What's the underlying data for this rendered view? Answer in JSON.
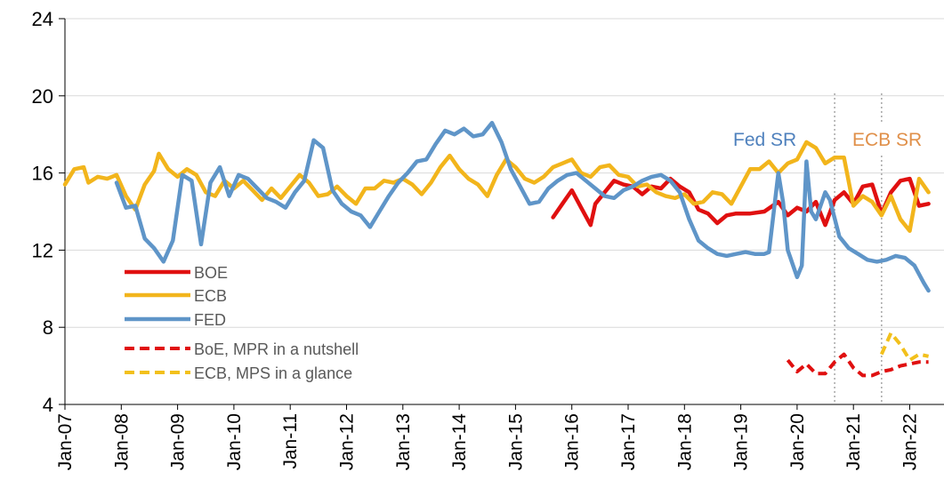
{
  "chart_data": {
    "type": "line",
    "title": "",
    "xlabel": "",
    "ylabel": "",
    "ylim": [
      4,
      24
    ],
    "y_ticks": [
      "4",
      "8",
      "12",
      "16",
      "20",
      "24"
    ],
    "grid": "horizontal",
    "legend_position": "left",
    "x_tick_labels": [
      "Jan-07",
      "Jan-08",
      "Jan-09",
      "Jan-10",
      "Jan-11",
      "Jan-12",
      "Jan-13",
      "Jan-14",
      "Jan-15",
      "Jan-16",
      "Jan-17",
      "Jan-18",
      "Jan-19",
      "Jan-20",
      "Jan-21",
      "Jan-22"
    ],
    "annotations": [
      {
        "label": "Fed SR",
        "date": "2020-09",
        "color": "#4f81bd"
      },
      {
        "label": "ECB SR",
        "date": "2021-07",
        "color": "#e0904a"
      }
    ],
    "series": [
      {
        "name": "BOE",
        "color": "#e01010",
        "dash": false,
        "points": [
          [
            "2015-09",
            13.7
          ],
          [
            "2015-11",
            14.4
          ],
          [
            "2016-01",
            15.1
          ],
          [
            "2016-03",
            14.2
          ],
          [
            "2016-05",
            13.3
          ],
          [
            "2016-06",
            14.4
          ],
          [
            "2016-08",
            15.0
          ],
          [
            "2016-10",
            15.6
          ],
          [
            "2016-12",
            15.4
          ],
          [
            "2017-02",
            15.3
          ],
          [
            "2017-04",
            14.9
          ],
          [
            "2017-06",
            15.3
          ],
          [
            "2017-08",
            15.2
          ],
          [
            "2017-10",
            15.7
          ],
          [
            "2017-12",
            15.3
          ],
          [
            "2018-02",
            15.0
          ],
          [
            "2018-04",
            14.1
          ],
          [
            "2018-06",
            13.9
          ],
          [
            "2018-08",
            13.4
          ],
          [
            "2018-10",
            13.8
          ],
          [
            "2018-12",
            13.9
          ],
          [
            "2019-03",
            13.9
          ],
          [
            "2019-06",
            14.0
          ],
          [
            "2019-09",
            14.5
          ],
          [
            "2019-11",
            13.8
          ],
          [
            "2020-01",
            14.2
          ],
          [
            "2020-03",
            14.0
          ],
          [
            "2020-05",
            14.5
          ],
          [
            "2020-07",
            13.3
          ],
          [
            "2020-09",
            14.6
          ],
          [
            "2020-11",
            15.0
          ],
          [
            "2021-01",
            14.4
          ],
          [
            "2021-03",
            15.3
          ],
          [
            "2021-05",
            15.4
          ],
          [
            "2021-07",
            13.9
          ],
          [
            "2021-09",
            15.0
          ],
          [
            "2021-11",
            15.6
          ],
          [
            "2022-01",
            15.7
          ],
          [
            "2022-03",
            14.3
          ],
          [
            "2022-05",
            14.4
          ]
        ]
      },
      {
        "name": "ECB",
        "color": "#f2b51c",
        "dash": false,
        "points": [
          [
            "2007-01",
            15.4
          ],
          [
            "2007-03",
            16.2
          ],
          [
            "2007-05",
            16.3
          ],
          [
            "2007-06",
            15.5
          ],
          [
            "2007-08",
            15.8
          ],
          [
            "2007-10",
            15.7
          ],
          [
            "2007-12",
            15.9
          ],
          [
            "2008-02",
            14.8
          ],
          [
            "2008-04",
            14.1
          ],
          [
            "2008-06",
            15.4
          ],
          [
            "2008-08",
            16.1
          ],
          [
            "2008-09",
            17.0
          ],
          [
            "2008-11",
            16.2
          ],
          [
            "2009-01",
            15.8
          ],
          [
            "2009-03",
            16.2
          ],
          [
            "2009-05",
            15.9
          ],
          [
            "2009-07",
            15.0
          ],
          [
            "2009-09",
            14.8
          ],
          [
            "2009-11",
            15.6
          ],
          [
            "2010-01",
            15.2
          ],
          [
            "2010-03",
            15.6
          ],
          [
            "2010-05",
            15.1
          ],
          [
            "2010-07",
            14.6
          ],
          [
            "2010-09",
            15.2
          ],
          [
            "2010-11",
            14.7
          ],
          [
            "2011-01",
            15.3
          ],
          [
            "2011-03",
            15.9
          ],
          [
            "2011-05",
            15.5
          ],
          [
            "2011-07",
            14.8
          ],
          [
            "2011-09",
            14.9
          ],
          [
            "2011-11",
            15.3
          ],
          [
            "2012-01",
            14.8
          ],
          [
            "2012-03",
            14.4
          ],
          [
            "2012-05",
            15.2
          ],
          [
            "2012-07",
            15.2
          ],
          [
            "2012-09",
            15.6
          ],
          [
            "2012-11",
            15.5
          ],
          [
            "2013-01",
            15.7
          ],
          [
            "2013-03",
            15.4
          ],
          [
            "2013-05",
            14.9
          ],
          [
            "2013-07",
            15.5
          ],
          [
            "2013-09",
            16.3
          ],
          [
            "2013-11",
            16.9
          ],
          [
            "2014-01",
            16.2
          ],
          [
            "2014-03",
            15.7
          ],
          [
            "2014-05",
            15.4
          ],
          [
            "2014-07",
            14.8
          ],
          [
            "2014-09",
            15.9
          ],
          [
            "2014-11",
            16.7
          ],
          [
            "2015-01",
            16.3
          ],
          [
            "2015-03",
            15.7
          ],
          [
            "2015-05",
            15.5
          ],
          [
            "2015-07",
            15.8
          ],
          [
            "2015-09",
            16.3
          ],
          [
            "2015-11",
            16.5
          ],
          [
            "2016-01",
            16.7
          ],
          [
            "2016-03",
            16.0
          ],
          [
            "2016-05",
            15.8
          ],
          [
            "2016-07",
            16.3
          ],
          [
            "2016-09",
            16.4
          ],
          [
            "2016-11",
            15.9
          ],
          [
            "2017-01",
            15.8
          ],
          [
            "2017-03",
            15.3
          ],
          [
            "2017-05",
            15.4
          ],
          [
            "2017-07",
            15.0
          ],
          [
            "2017-09",
            14.8
          ],
          [
            "2017-11",
            14.7
          ],
          [
            "2018-01",
            14.9
          ],
          [
            "2018-03",
            14.4
          ],
          [
            "2018-05",
            14.5
          ],
          [
            "2018-07",
            15.0
          ],
          [
            "2018-09",
            14.9
          ],
          [
            "2018-11",
            14.4
          ],
          [
            "2019-01",
            15.3
          ],
          [
            "2019-03",
            16.2
          ],
          [
            "2019-05",
            16.2
          ],
          [
            "2019-07",
            16.6
          ],
          [
            "2019-09",
            16.0
          ],
          [
            "2019-11",
            16.5
          ],
          [
            "2020-01",
            16.7
          ],
          [
            "2020-03",
            17.6
          ],
          [
            "2020-05",
            17.3
          ],
          [
            "2020-07",
            16.5
          ],
          [
            "2020-09",
            16.8
          ],
          [
            "2020-11",
            16.8
          ],
          [
            "2021-01",
            14.3
          ],
          [
            "2021-03",
            14.8
          ],
          [
            "2021-05",
            14.5
          ],
          [
            "2021-07",
            13.8
          ],
          [
            "2021-09",
            14.8
          ],
          [
            "2021-11",
            13.6
          ],
          [
            "2022-01",
            13.0
          ],
          [
            "2022-03",
            15.7
          ],
          [
            "2022-05",
            15.0
          ]
        ]
      },
      {
        "name": "FED",
        "color": "#5f95c8",
        "dash": false,
        "points": [
          [
            "2007-12",
            15.5
          ],
          [
            "2008-02",
            14.2
          ],
          [
            "2008-04",
            14.3
          ],
          [
            "2008-06",
            12.6
          ],
          [
            "2008-08",
            12.1
          ],
          [
            "2008-10",
            11.4
          ],
          [
            "2008-12",
            12.5
          ],
          [
            "2009-02",
            15.9
          ],
          [
            "2009-04",
            15.6
          ],
          [
            "2009-06",
            12.3
          ],
          [
            "2009-08",
            15.5
          ],
          [
            "2009-10",
            16.3
          ],
          [
            "2009-12",
            14.8
          ],
          [
            "2010-02",
            15.9
          ],
          [
            "2010-04",
            15.7
          ],
          [
            "2010-06",
            15.2
          ],
          [
            "2010-08",
            14.7
          ],
          [
            "2010-10",
            14.5
          ],
          [
            "2010-12",
            14.2
          ],
          [
            "2011-02",
            15.0
          ],
          [
            "2011-04",
            15.6
          ],
          [
            "2011-06",
            17.7
          ],
          [
            "2011-08",
            17.3
          ],
          [
            "2011-10",
            15.1
          ],
          [
            "2011-12",
            14.4
          ],
          [
            "2012-02",
            14.0
          ],
          [
            "2012-04",
            13.8
          ],
          [
            "2012-06",
            13.2
          ],
          [
            "2012-08",
            14.0
          ],
          [
            "2012-10",
            14.8
          ],
          [
            "2012-12",
            15.5
          ],
          [
            "2013-02",
            16.0
          ],
          [
            "2013-04",
            16.6
          ],
          [
            "2013-06",
            16.7
          ],
          [
            "2013-08",
            17.5
          ],
          [
            "2013-10",
            18.2
          ],
          [
            "2013-12",
            18.0
          ],
          [
            "2014-02",
            18.3
          ],
          [
            "2014-04",
            17.9
          ],
          [
            "2014-06",
            18.0
          ],
          [
            "2014-08",
            18.6
          ],
          [
            "2014-10",
            17.6
          ],
          [
            "2014-12",
            16.2
          ],
          [
            "2015-02",
            15.3
          ],
          [
            "2015-04",
            14.4
          ],
          [
            "2015-06",
            14.5
          ],
          [
            "2015-08",
            15.2
          ],
          [
            "2015-10",
            15.6
          ],
          [
            "2015-12",
            15.9
          ],
          [
            "2016-02",
            16.0
          ],
          [
            "2016-04",
            15.6
          ],
          [
            "2016-06",
            15.2
          ],
          [
            "2016-08",
            14.8
          ],
          [
            "2016-10",
            14.7
          ],
          [
            "2016-12",
            15.1
          ],
          [
            "2017-02",
            15.3
          ],
          [
            "2017-04",
            15.6
          ],
          [
            "2017-06",
            15.8
          ],
          [
            "2017-08",
            15.9
          ],
          [
            "2017-10",
            15.6
          ],
          [
            "2017-12",
            15.0
          ],
          [
            "2018-02",
            13.6
          ],
          [
            "2018-04",
            12.5
          ],
          [
            "2018-06",
            12.1
          ],
          [
            "2018-08",
            11.8
          ],
          [
            "2018-10",
            11.7
          ],
          [
            "2018-12",
            11.8
          ],
          [
            "2019-02",
            11.9
          ],
          [
            "2019-04",
            11.8
          ],
          [
            "2019-06",
            11.8
          ],
          [
            "2019-07",
            11.9
          ],
          [
            "2019-09",
            16.0
          ],
          [
            "2019-10",
            14.5
          ],
          [
            "2019-11",
            12.0
          ],
          [
            "2020-01",
            10.6
          ],
          [
            "2020-02",
            11.2
          ],
          [
            "2020-03",
            16.6
          ],
          [
            "2020-04",
            14.0
          ],
          [
            "2020-05",
            13.6
          ],
          [
            "2020-07",
            15.0
          ],
          [
            "2020-08",
            14.6
          ],
          [
            "2020-10",
            12.7
          ],
          [
            "2020-12",
            12.1
          ],
          [
            "2021-02",
            11.8
          ],
          [
            "2021-04",
            11.5
          ],
          [
            "2021-06",
            11.4
          ],
          [
            "2021-08",
            11.5
          ],
          [
            "2021-10",
            11.7
          ],
          [
            "2021-12",
            11.6
          ],
          [
            "2022-02",
            11.2
          ],
          [
            "2022-04",
            10.3
          ],
          [
            "2022-05",
            9.9
          ]
        ]
      },
      {
        "name": "BoE, MPR in a nutshell",
        "color": "#e01010",
        "dash": true,
        "points": [
          [
            "2019-11",
            6.3
          ],
          [
            "2020-01",
            5.7
          ],
          [
            "2020-03",
            6.1
          ],
          [
            "2020-05",
            5.6
          ],
          [
            "2020-07",
            5.6
          ],
          [
            "2020-09",
            6.2
          ],
          [
            "2020-11",
            6.6
          ],
          [
            "2021-01",
            5.9
          ],
          [
            "2021-03",
            5.5
          ],
          [
            "2021-05",
            5.5
          ],
          [
            "2021-07",
            5.7
          ],
          [
            "2021-09",
            5.8
          ],
          [
            "2021-11",
            6.0
          ],
          [
            "2022-01",
            6.1
          ],
          [
            "2022-03",
            6.2
          ],
          [
            "2022-05",
            6.2
          ]
        ]
      },
      {
        "name": "ECB, MPS in a glance",
        "color": "#f2c01c",
        "dash": true,
        "points": [
          [
            "2021-07",
            6.6
          ],
          [
            "2021-09",
            7.7
          ],
          [
            "2021-11",
            7.1
          ],
          [
            "2022-01",
            6.3
          ],
          [
            "2022-03",
            6.6
          ],
          [
            "2022-05",
            6.5
          ]
        ]
      }
    ]
  }
}
